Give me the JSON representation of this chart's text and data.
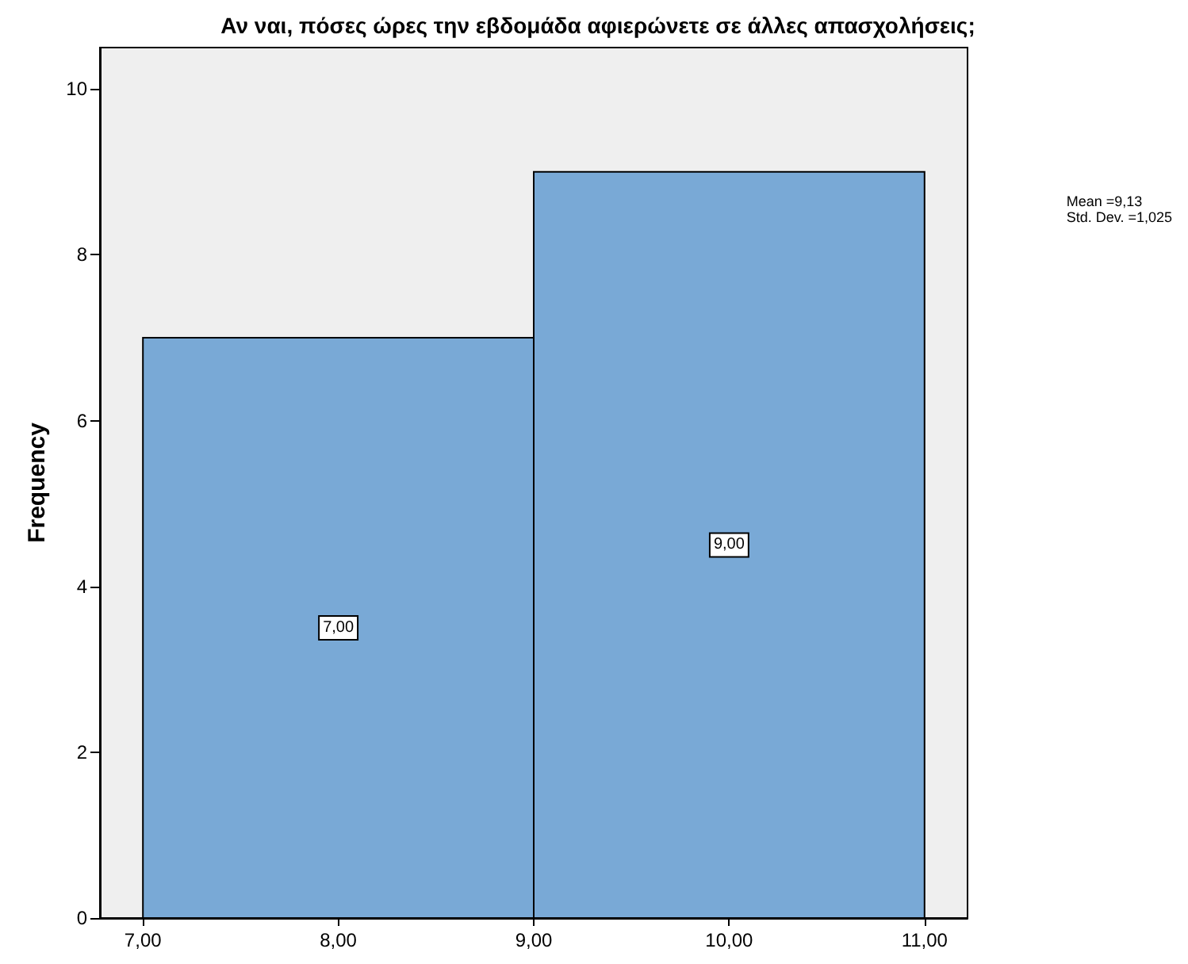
{
  "chart_data": {
    "type": "histogram",
    "title": "Αν ναι, πόσες ώρες την εβδομάδα αφιερώνετε σε άλλες απασχολήσεις;",
    "ylabel": "Frequency",
    "bins": [
      7,
      9,
      11
    ],
    "values": [
      7,
      9
    ],
    "value_labels": [
      "7,00",
      "9,00"
    ],
    "color": "#79a9d6",
    "xlim": [
      6.78,
      11.22
    ],
    "xticks": [
      {
        "value": 7,
        "label": "7,00"
      },
      {
        "value": 8,
        "label": "8,00"
      },
      {
        "value": 9,
        "label": "9,00"
      },
      {
        "value": 10,
        "label": "10,00"
      },
      {
        "value": 11,
        "label": "11,00"
      }
    ],
    "ylim": [
      0,
      10.5
    ],
    "yticks": [
      0,
      2,
      4,
      6,
      8,
      10
    ],
    "annotations": [
      "Mean =9,13",
      "Std. Dev. =1,025"
    ],
    "grid": false
  }
}
